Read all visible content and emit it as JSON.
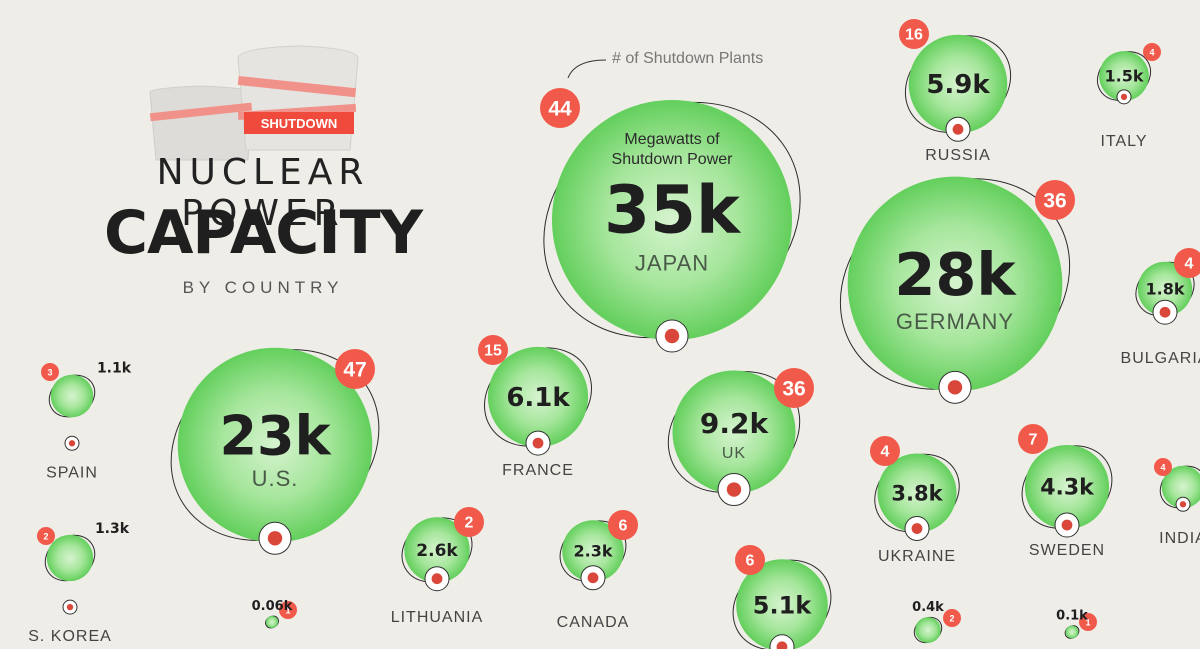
{
  "title": {
    "line1": "NUCLEAR POWER",
    "line2": "CAPACITY",
    "line3": "BY COUNTRY",
    "tower_label": "SHUTDOWN"
  },
  "legend": {
    "plants_note": "# of Shutdown Plants",
    "mw_note_1": "Megawatts of",
    "mw_note_2": "Shutdown Power"
  },
  "colors": {
    "background": "#efede8",
    "bubble": "#6fd36a",
    "bubble_light": "#c9efc2",
    "badge": "#f15a4a",
    "text_dark": "#1f1f1f"
  },
  "chart_data": {
    "type": "bubble",
    "title": "NUCLEAR POWER CAPACITY BY COUNTRY",
    "size_measure": "Megawatts of Shutdown Power",
    "badge_measure": "# of Shutdown Plants",
    "series": [
      {
        "country": "JAPAN",
        "mw_label": "35k",
        "mw": 35000,
        "plants": 44
      },
      {
        "country": "GERMANY",
        "mw_label": "28k",
        "mw": 28000,
        "plants": 36
      },
      {
        "country": "U.S.",
        "mw_label": "23k",
        "mw": 23000,
        "plants": 47
      },
      {
        "country": "UK",
        "mw_label": "9.2k",
        "mw": 9200,
        "plants": 36
      },
      {
        "country": "FRANCE",
        "mw_label": "6.1k",
        "mw": 6100,
        "plants": 15
      },
      {
        "country": "RUSSIA",
        "mw_label": "5.9k",
        "mw": 5900,
        "plants": 16
      },
      {
        "country": "",
        "mw_label": "5.1k",
        "mw": 5100,
        "plants": 6
      },
      {
        "country": "SWEDEN",
        "mw_label": "4.3k",
        "mw": 4300,
        "plants": 7
      },
      {
        "country": "UKRAINE",
        "mw_label": "3.8k",
        "mw": 3800,
        "plants": 4
      },
      {
        "country": "LITHUANIA",
        "mw_label": "2.6k",
        "mw": 2600,
        "plants": 2
      },
      {
        "country": "CANADA",
        "mw_label": "2.3k",
        "mw": 2300,
        "plants": 6
      },
      {
        "country": "BULGARIA",
        "mw_label": "1.8k",
        "mw": 1800,
        "plants": 4
      },
      {
        "country": "ITALY",
        "mw_label": "1.5k",
        "mw": 1500,
        "plants": 4
      },
      {
        "country": "S. KOREA",
        "mw_label": "1.3k",
        "mw": 1300,
        "plants": 2
      },
      {
        "country": "SPAIN",
        "mw_label": "1.1k",
        "mw": 1100,
        "plants": 3
      },
      {
        "country": "INDIA",
        "mw_label": "",
        "mw": null,
        "plants": 4
      },
      {
        "country": "",
        "mw_label": "0.4k",
        "mw": 400,
        "plants": 2
      },
      {
        "country": "",
        "mw_label": "0.1k",
        "mw": 100,
        "plants": 1
      },
      {
        "country": "",
        "mw_label": "0.06k",
        "mw": 60,
        "plants": 1
      }
    ]
  }
}
